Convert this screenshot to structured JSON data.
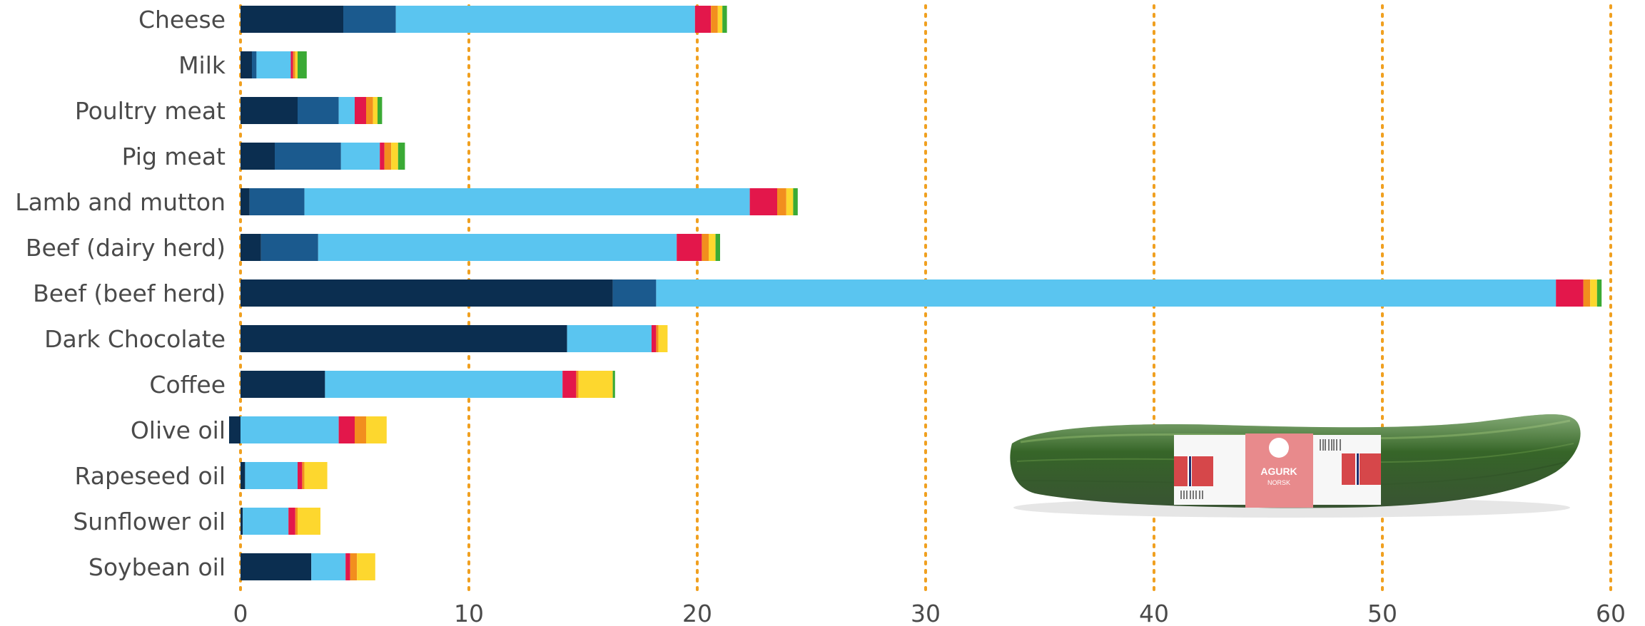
{
  "chart_data": {
    "type": "bar",
    "orientation": "horizontal",
    "stacked": true,
    "categories": [
      "Cheese",
      "Milk",
      "Poultry meat",
      "Pig meat",
      "Lamb and mutton",
      "Beef (dairy herd)",
      "Beef (beef herd)",
      "Dark Chocolate",
      "Coffee",
      "Olive oil",
      "Rapeseed oil",
      "Sunflower oil",
      "Soybean oil"
    ],
    "series": [
      {
        "color": "#0b2e50",
        "values": [
          4.5,
          0.5,
          2.5,
          1.5,
          0.4,
          0.9,
          16.3,
          14.3,
          3.7,
          -0.5,
          0.2,
          0.1,
          3.1
        ]
      },
      {
        "color": "#1b5a8e",
        "values": [
          2.3,
          0.2,
          1.8,
          2.9,
          2.4,
          2.5,
          1.9,
          0.0,
          0.0,
          0.0,
          0.0,
          0.0,
          0.0
        ]
      },
      {
        "color": "#5ac5f0",
        "values": [
          13.1,
          1.5,
          0.7,
          1.7,
          19.5,
          15.7,
          39.4,
          3.7,
          10.4,
          4.3,
          2.3,
          2.0,
          1.5
        ]
      },
      {
        "color": "#e3174b",
        "values": [
          0.7,
          0.1,
          0.5,
          0.2,
          1.2,
          1.1,
          1.2,
          0.2,
          0.6,
          0.7,
          0.2,
          0.3,
          0.2
        ]
      },
      {
        "color": "#f28e1e",
        "values": [
          0.3,
          0.1,
          0.3,
          0.3,
          0.4,
          0.3,
          0.3,
          0.1,
          0.1,
          0.5,
          0.1,
          0.1,
          0.3
        ]
      },
      {
        "color": "#fdd72e",
        "values": [
          0.2,
          0.1,
          0.2,
          0.3,
          0.3,
          0.3,
          0.3,
          0.4,
          1.5,
          0.9,
          1.0,
          1.0,
          0.8
        ]
      },
      {
        "color": "#3aaa35",
        "values": [
          0.2,
          0.4,
          0.2,
          0.3,
          0.2,
          0.2,
          0.2,
          0.0,
          0.1,
          0.0,
          0.0,
          0.0,
          0.0
        ]
      }
    ],
    "xlim": [
      0,
      60
    ],
    "xticks": [
      "0",
      "10",
      "20",
      "30",
      "40",
      "50",
      "60"
    ],
    "grid": true,
    "grid_color": "#f0a020",
    "legend": "none"
  },
  "image": {
    "subject": "cucumber-photo",
    "label_text": "AGURK",
    "sub_label_text": "NORSK"
  }
}
